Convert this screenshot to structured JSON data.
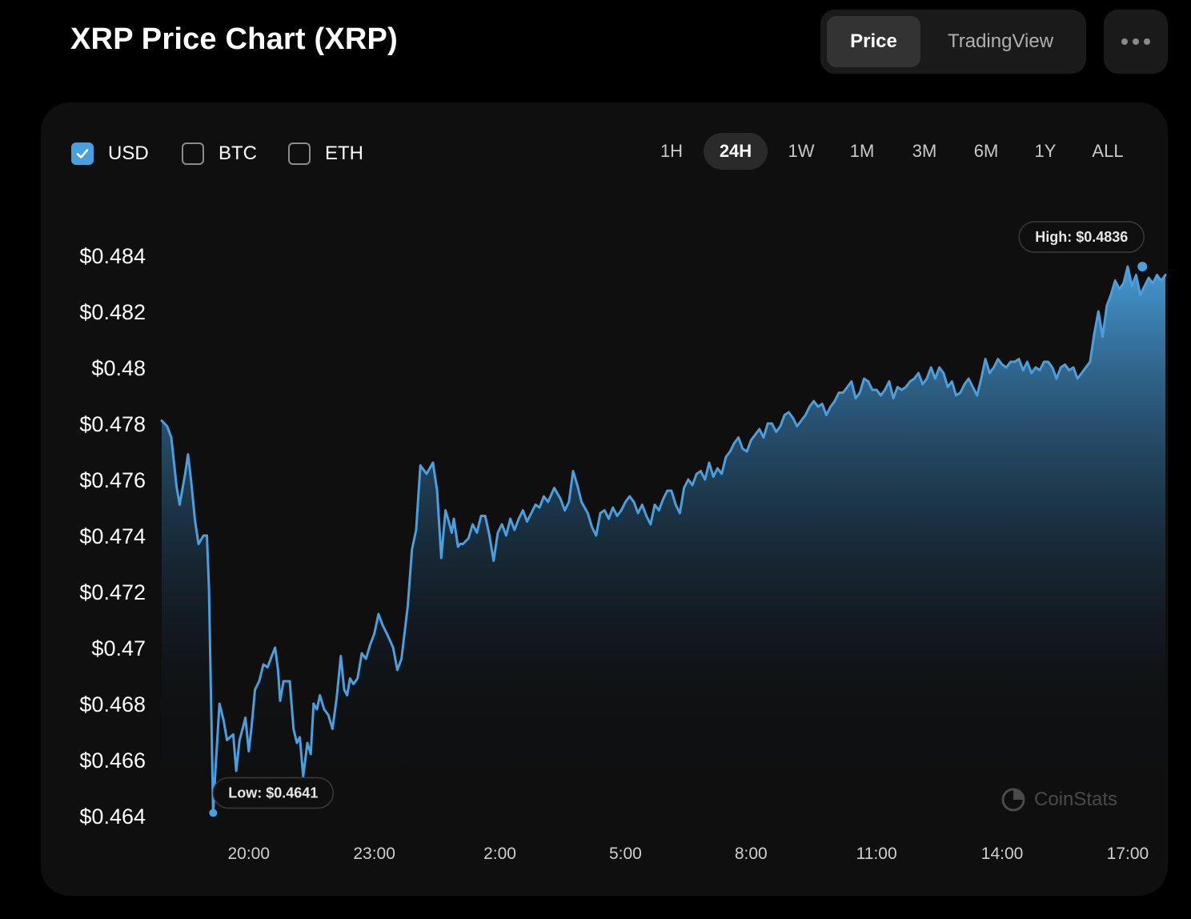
{
  "header": {
    "title": "XRP Price Chart (XRP)",
    "tabs": [
      {
        "label": "Price",
        "active": true
      },
      {
        "label": "TradingView",
        "active": false
      }
    ],
    "more_icon": "more-horizontal-icon"
  },
  "currencies": [
    {
      "label": "USD",
      "checked": true
    },
    {
      "label": "BTC",
      "checked": false
    },
    {
      "label": "ETH",
      "checked": false
    }
  ],
  "ranges": [
    {
      "label": "1H",
      "active": false
    },
    {
      "label": "24H",
      "active": true
    },
    {
      "label": "1W",
      "active": false
    },
    {
      "label": "1M",
      "active": false
    },
    {
      "label": "3M",
      "active": false
    },
    {
      "label": "6M",
      "active": false
    },
    {
      "label": "1Y",
      "active": false
    },
    {
      "label": "ALL",
      "active": false
    }
  ],
  "watermark": "CoinStats",
  "colors": {
    "line": "#4a9fde",
    "background": "#0f0f10",
    "accent": "#4a9fde"
  },
  "chart_data": {
    "type": "area",
    "title": "",
    "xlabel": "",
    "ylabel": "",
    "grid": false,
    "xlim": [
      17.92,
      17.9
    ],
    "ylim": [
      0.464,
      0.484
    ],
    "y_ticks": [
      "$0.484",
      "$0.482",
      "$0.48",
      "$0.478",
      "$0.476",
      "$0.474",
      "$0.472",
      "$0.47",
      "$0.468",
      "$0.466",
      "$0.464"
    ],
    "y_tick_values": [
      0.484,
      0.482,
      0.48,
      0.478,
      0.476,
      0.474,
      0.472,
      0.47,
      0.468,
      0.466,
      0.464
    ],
    "x_ticks": [
      {
        "label": "20:00",
        "t": 20
      },
      {
        "label": "23:00",
        "t": 23
      },
      {
        "label": "2:00",
        "t": 26
      },
      {
        "label": "5:00",
        "t": 29
      },
      {
        "label": "8:00",
        "t": 32
      },
      {
        "label": "11:00",
        "t": 35
      },
      {
        "label": "14:00",
        "t": 38
      },
      {
        "label": "17:00",
        "t": 41
      }
    ],
    "series": [
      {
        "t": [
          17.92,
          18.05,
          18.15,
          18.28,
          18.35,
          18.48,
          18.55,
          18.62,
          18.72,
          18.8,
          18.92,
          19.0,
          19.05,
          19.15,
          19.2,
          19.3,
          19.4,
          19.48,
          19.55,
          19.63,
          19.7,
          19.78,
          19.87,
          19.92,
          20.0,
          20.07,
          20.15,
          20.25,
          20.35,
          20.45,
          20.55,
          20.63,
          20.7,
          20.75,
          20.83,
          20.9,
          20.98,
          21.07,
          21.15,
          21.22,
          21.3,
          21.4,
          21.48,
          21.55,
          21.63,
          21.7,
          21.8,
          21.9,
          22.0,
          22.1,
          22.2,
          22.28,
          22.35,
          22.42,
          22.5,
          22.6,
          22.7,
          22.8,
          22.9,
          23.0,
          23.1,
          23.2,
          23.3,
          23.45,
          23.55,
          23.65,
          23.8,
          23.9,
          24.0,
          24.1,
          24.25,
          24.4,
          24.5,
          24.6,
          24.7,
          24.78,
          24.85,
          24.9,
          25.0,
          25.05,
          25.12,
          25.25,
          25.35,
          25.45,
          25.55,
          25.65,
          25.75,
          25.85,
          25.95,
          26.05,
          26.15,
          26.25,
          26.35,
          26.45,
          26.55,
          26.65,
          26.75,
          26.85,
          26.95,
          27.05,
          27.15,
          27.3,
          27.45,
          27.55,
          27.65,
          27.75,
          27.85,
          27.95,
          28.1,
          28.2,
          28.3,
          28.4,
          28.5,
          28.6,
          28.7,
          28.8,
          28.9,
          29.0,
          29.1,
          29.2,
          29.3,
          29.4,
          29.5,
          29.6,
          29.7,
          29.8,
          29.9,
          30.0,
          30.1,
          30.2,
          30.3,
          30.4,
          30.5,
          30.6,
          30.7,
          30.8,
          30.9,
          31.0,
          31.1,
          31.2,
          31.3,
          31.4,
          31.5,
          31.6,
          31.7,
          31.8,
          31.9,
          32.0,
          32.1,
          32.2,
          32.3,
          32.4,
          32.5,
          32.6,
          32.7,
          32.8,
          32.9,
          33.0,
          33.1,
          33.2,
          33.3,
          33.4,
          33.5,
          33.6,
          33.7,
          33.8,
          33.9,
          34.0,
          34.1,
          34.2,
          34.3,
          34.4,
          34.5,
          34.6,
          34.7,
          34.8,
          34.9,
          35.0,
          35.1,
          35.2,
          35.3,
          35.4,
          35.5,
          35.6,
          35.7,
          35.8,
          35.9,
          36.0,
          36.1,
          36.2,
          36.3,
          36.4,
          36.5,
          36.6,
          36.7,
          36.8,
          36.9,
          37.0,
          37.1,
          37.2,
          37.3,
          37.4,
          37.5,
          37.6,
          37.7,
          37.8,
          37.9,
          38.0,
          38.1,
          38.2,
          38.3,
          38.4,
          38.5,
          38.6,
          38.7,
          38.8,
          38.9,
          39.0,
          39.1,
          39.2,
          39.3,
          39.4,
          39.5,
          39.6,
          39.7,
          39.8,
          39.9,
          40.0,
          40.1,
          40.2,
          40.3,
          40.4,
          40.5,
          40.6,
          40.7,
          40.8,
          40.9,
          41.0,
          41.1,
          41.2,
          41.3,
          41.4,
          41.5,
          41.6,
          41.7,
          41.8,
          41.9
        ],
        "values": [
          0.4781,
          0.4779,
          0.4775,
          0.4757,
          0.4751,
          0.4762,
          0.4769,
          0.476,
          0.4745,
          0.4737,
          0.474,
          0.474,
          0.4721,
          0.4641,
          0.4655,
          0.468,
          0.4674,
          0.4667,
          0.4668,
          0.4669,
          0.4656,
          0.4667,
          0.4672,
          0.4675,
          0.4663,
          0.4672,
          0.4685,
          0.4688,
          0.4694,
          0.4693,
          0.4697,
          0.47,
          0.4692,
          0.4681,
          0.4688,
          0.4688,
          0.4688,
          0.4671,
          0.4666,
          0.4668,
          0.4654,
          0.4666,
          0.4662,
          0.468,
          0.4678,
          0.4683,
          0.4678,
          0.4676,
          0.4671,
          0.4682,
          0.4697,
          0.4685,
          0.4683,
          0.4689,
          0.4687,
          0.4689,
          0.4698,
          0.4696,
          0.4701,
          0.4705,
          0.4712,
          0.4708,
          0.4705,
          0.47,
          0.4692,
          0.4696,
          0.4715,
          0.4735,
          0.4742,
          0.4765,
          0.4762,
          0.4766,
          0.4756,
          0.4732,
          0.4749,
          0.4745,
          0.4741,
          0.4746,
          0.4736,
          0.4737,
          0.4737,
          0.4739,
          0.4744,
          0.4741,
          0.4747,
          0.4747,
          0.474,
          0.4731,
          0.4741,
          0.4744,
          0.474,
          0.4746,
          0.4742,
          0.4746,
          0.4749,
          0.4745,
          0.4748,
          0.4751,
          0.475,
          0.4754,
          0.4752,
          0.4757,
          0.4753,
          0.4749,
          0.4752,
          0.4763,
          0.4758,
          0.4752,
          0.4748,
          0.4743,
          0.474,
          0.4748,
          0.4749,
          0.4746,
          0.475,
          0.4747,
          0.4749,
          0.4752,
          0.4754,
          0.4752,
          0.4748,
          0.4751,
          0.4747,
          0.4744,
          0.4751,
          0.4749,
          0.4753,
          0.4756,
          0.4756,
          0.4751,
          0.4748,
          0.4757,
          0.476,
          0.4758,
          0.4762,
          0.4763,
          0.476,
          0.4766,
          0.4761,
          0.4764,
          0.4762,
          0.4768,
          0.477,
          0.4773,
          0.4775,
          0.4771,
          0.477,
          0.4774,
          0.4776,
          0.4778,
          0.4775,
          0.478,
          0.478,
          0.4777,
          0.4779,
          0.4783,
          0.4784,
          0.4782,
          0.4779,
          0.4781,
          0.4783,
          0.4786,
          0.4788,
          0.4786,
          0.4787,
          0.4783,
          0.4786,
          0.4788,
          0.4791,
          0.4791,
          0.4793,
          0.4795,
          0.4789,
          0.4791,
          0.4796,
          0.4795,
          0.4792,
          0.4792,
          0.479,
          0.4792,
          0.4795,
          0.4789,
          0.4793,
          0.4792,
          0.4793,
          0.4795,
          0.4796,
          0.4798,
          0.4794,
          0.4796,
          0.48,
          0.4796,
          0.48,
          0.4798,
          0.4793,
          0.4795,
          0.479,
          0.4791,
          0.4794,
          0.4796,
          0.4793,
          0.479,
          0.4796,
          0.4803,
          0.4798,
          0.48,
          0.4803,
          0.4801,
          0.48,
          0.4802,
          0.4802,
          0.4803,
          0.4799,
          0.4802,
          0.4798,
          0.48,
          0.4799,
          0.4802,
          0.4802,
          0.48,
          0.4796,
          0.48,
          0.4801,
          0.4799,
          0.48,
          0.4796,
          0.4798,
          0.48,
          0.4802,
          0.4812,
          0.482,
          0.4811,
          0.4822,
          0.4826,
          0.4831,
          0.4828,
          0.483,
          0.4836,
          0.4829,
          0.4833,
          0.4826,
          0.4829,
          0.4832,
          0.483,
          0.4833,
          0.4831,
          0.4833
        ]
      }
    ],
    "annotations": [
      {
        "label": "High: $0.4836",
        "kind": "high",
        "t": 41.35,
        "value": 0.4836
      },
      {
        "label": "Low: $0.4641",
        "kind": "low",
        "t": 19.15,
        "value": 0.4641
      }
    ]
  }
}
